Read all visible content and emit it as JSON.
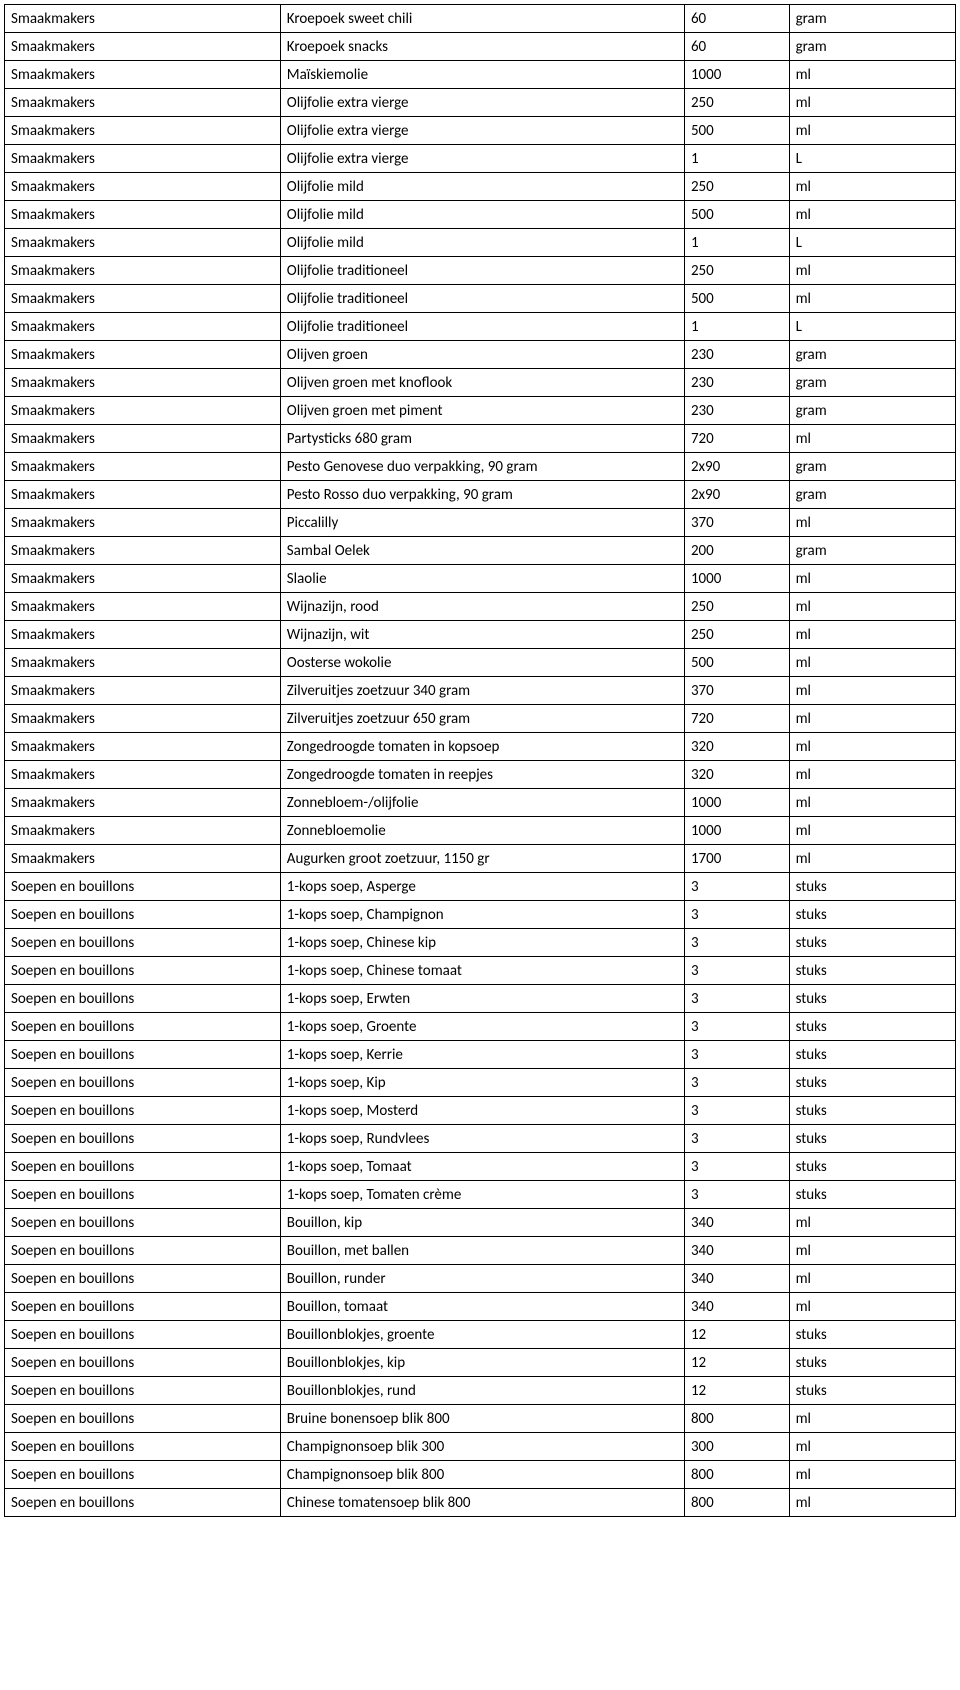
{
  "table": {
    "columns": [
      {
        "key": "category",
        "class": "col-cat"
      },
      {
        "key": "product",
        "class": "col-prod"
      },
      {
        "key": "quantity",
        "class": "col-qty"
      },
      {
        "key": "unit",
        "class": "col-unit"
      }
    ],
    "rows": [
      [
        "Smaakmakers",
        "Kroepoek sweet chili",
        "60",
        "gram"
      ],
      [
        "Smaakmakers",
        "Kroepoek snacks",
        "60",
        "gram"
      ],
      [
        "Smaakmakers",
        "Maïskiemolie",
        "1000",
        "ml"
      ],
      [
        "Smaakmakers",
        "Olijfolie extra vierge",
        "250",
        "ml"
      ],
      [
        "Smaakmakers",
        "Olijfolie extra vierge",
        "500",
        "ml"
      ],
      [
        "Smaakmakers",
        "Olijfolie extra vierge",
        "1",
        "L"
      ],
      [
        "Smaakmakers",
        "Olijfolie mild",
        "250",
        "ml"
      ],
      [
        "Smaakmakers",
        "Olijfolie mild",
        "500",
        "ml"
      ],
      [
        "Smaakmakers",
        "Olijfolie mild",
        "1",
        "L"
      ],
      [
        "Smaakmakers",
        "Olijfolie traditioneel",
        "250",
        "ml"
      ],
      [
        "Smaakmakers",
        "Olijfolie traditioneel",
        "500",
        "ml"
      ],
      [
        "Smaakmakers",
        "Olijfolie traditioneel",
        "1",
        "L"
      ],
      [
        "Smaakmakers",
        "Olijven groen",
        "230",
        "gram"
      ],
      [
        "Smaakmakers",
        "Olijven groen met knoflook",
        "230",
        "gram"
      ],
      [
        "Smaakmakers",
        "Olijven groen met piment",
        "230",
        "gram"
      ],
      [
        "Smaakmakers",
        "Partysticks 680 gram",
        "720",
        "ml"
      ],
      [
        "Smaakmakers",
        "Pesto Genovese duo verpakking, 90 gram",
        "2x90",
        "gram"
      ],
      [
        "Smaakmakers",
        "Pesto Rosso duo verpakking, 90 gram",
        "2x90",
        "gram"
      ],
      [
        "Smaakmakers",
        "Piccalilly",
        "370",
        "ml"
      ],
      [
        "Smaakmakers",
        "Sambal Oelek",
        "200",
        "gram"
      ],
      [
        "Smaakmakers",
        "Slaolie",
        "1000",
        "ml"
      ],
      [
        "Smaakmakers",
        "Wijnazijn, rood",
        "250",
        "ml"
      ],
      [
        "Smaakmakers",
        "Wijnazijn, wit",
        "250",
        "ml"
      ],
      [
        "Smaakmakers",
        "Oosterse wokolie",
        "500",
        "ml"
      ],
      [
        "Smaakmakers",
        "Zilveruitjes zoetzuur 340 gram",
        "370",
        "ml"
      ],
      [
        "Smaakmakers",
        "Zilveruitjes zoetzuur 650 gram",
        "720",
        "ml"
      ],
      [
        "Smaakmakers",
        "Zongedroogde tomaten in kopsoep",
        "320",
        "ml"
      ],
      [
        "Smaakmakers",
        "Zongedroogde tomaten in reepjes",
        "320",
        "ml"
      ],
      [
        "Smaakmakers",
        "Zonnebloem-/olijfolie",
        "1000",
        "ml"
      ],
      [
        "Smaakmakers",
        "Zonnebloemolie",
        "1000",
        "ml"
      ],
      [
        "Smaakmakers",
        "Augurken groot zoetzuur, 1150 gr",
        "1700",
        "ml"
      ],
      [
        "Soepen en bouillons",
        "1-kops soep, Asperge",
        "3",
        "stuks"
      ],
      [
        "Soepen en bouillons",
        "1-kops soep, Champignon",
        "3",
        "stuks"
      ],
      [
        "Soepen en bouillons",
        "1-kops soep, Chinese kip",
        "3",
        "stuks"
      ],
      [
        "Soepen en bouillons",
        "1-kops soep, Chinese tomaat",
        "3",
        "stuks"
      ],
      [
        "Soepen en bouillons",
        "1-kops soep, Erwten",
        "3",
        "stuks"
      ],
      [
        "Soepen en bouillons",
        "1-kops soep, Groente",
        "3",
        "stuks"
      ],
      [
        "Soepen en bouillons",
        "1-kops soep, Kerrie",
        "3",
        "stuks"
      ],
      [
        "Soepen en bouillons",
        "1-kops soep, Kip",
        "3",
        "stuks"
      ],
      [
        "Soepen en bouillons",
        "1-kops soep, Mosterd",
        "3",
        "stuks"
      ],
      [
        "Soepen en bouillons",
        "1-kops soep, Rundvlees",
        "3",
        "stuks"
      ],
      [
        "Soepen en bouillons",
        "1-kops soep, Tomaat",
        "3",
        "stuks"
      ],
      [
        "Soepen en bouillons",
        "1-kops soep, Tomaten crème",
        "3",
        "stuks"
      ],
      [
        "Soepen en bouillons",
        "Bouillon, kip",
        "340",
        "ml"
      ],
      [
        "Soepen en bouillons",
        "Bouillon, met ballen",
        "340",
        "ml"
      ],
      [
        "Soepen en bouillons",
        "Bouillon, runder",
        "340",
        "ml"
      ],
      [
        "Soepen en bouillons",
        "Bouillon, tomaat",
        "340",
        "ml"
      ],
      [
        "Soepen en bouillons",
        "Bouillonblokjes, groente",
        "12",
        "stuks"
      ],
      [
        "Soepen en bouillons",
        "Bouillonblokjes, kip",
        "12",
        "stuks"
      ],
      [
        "Soepen en bouillons",
        "Bouillonblokjes, rund",
        "12",
        "stuks"
      ],
      [
        "Soepen en bouillons",
        "Bruine bonensoep blik 800",
        "800",
        "ml"
      ],
      [
        "Soepen en bouillons",
        "Champignonsoep blik 300",
        "300",
        "ml"
      ],
      [
        "Soepen en bouillons",
        "Champignonsoep blik 800",
        "800",
        "ml"
      ],
      [
        "Soepen en bouillons",
        "Chinese tomatensoep blik 800",
        "800",
        "ml"
      ]
    ]
  }
}
